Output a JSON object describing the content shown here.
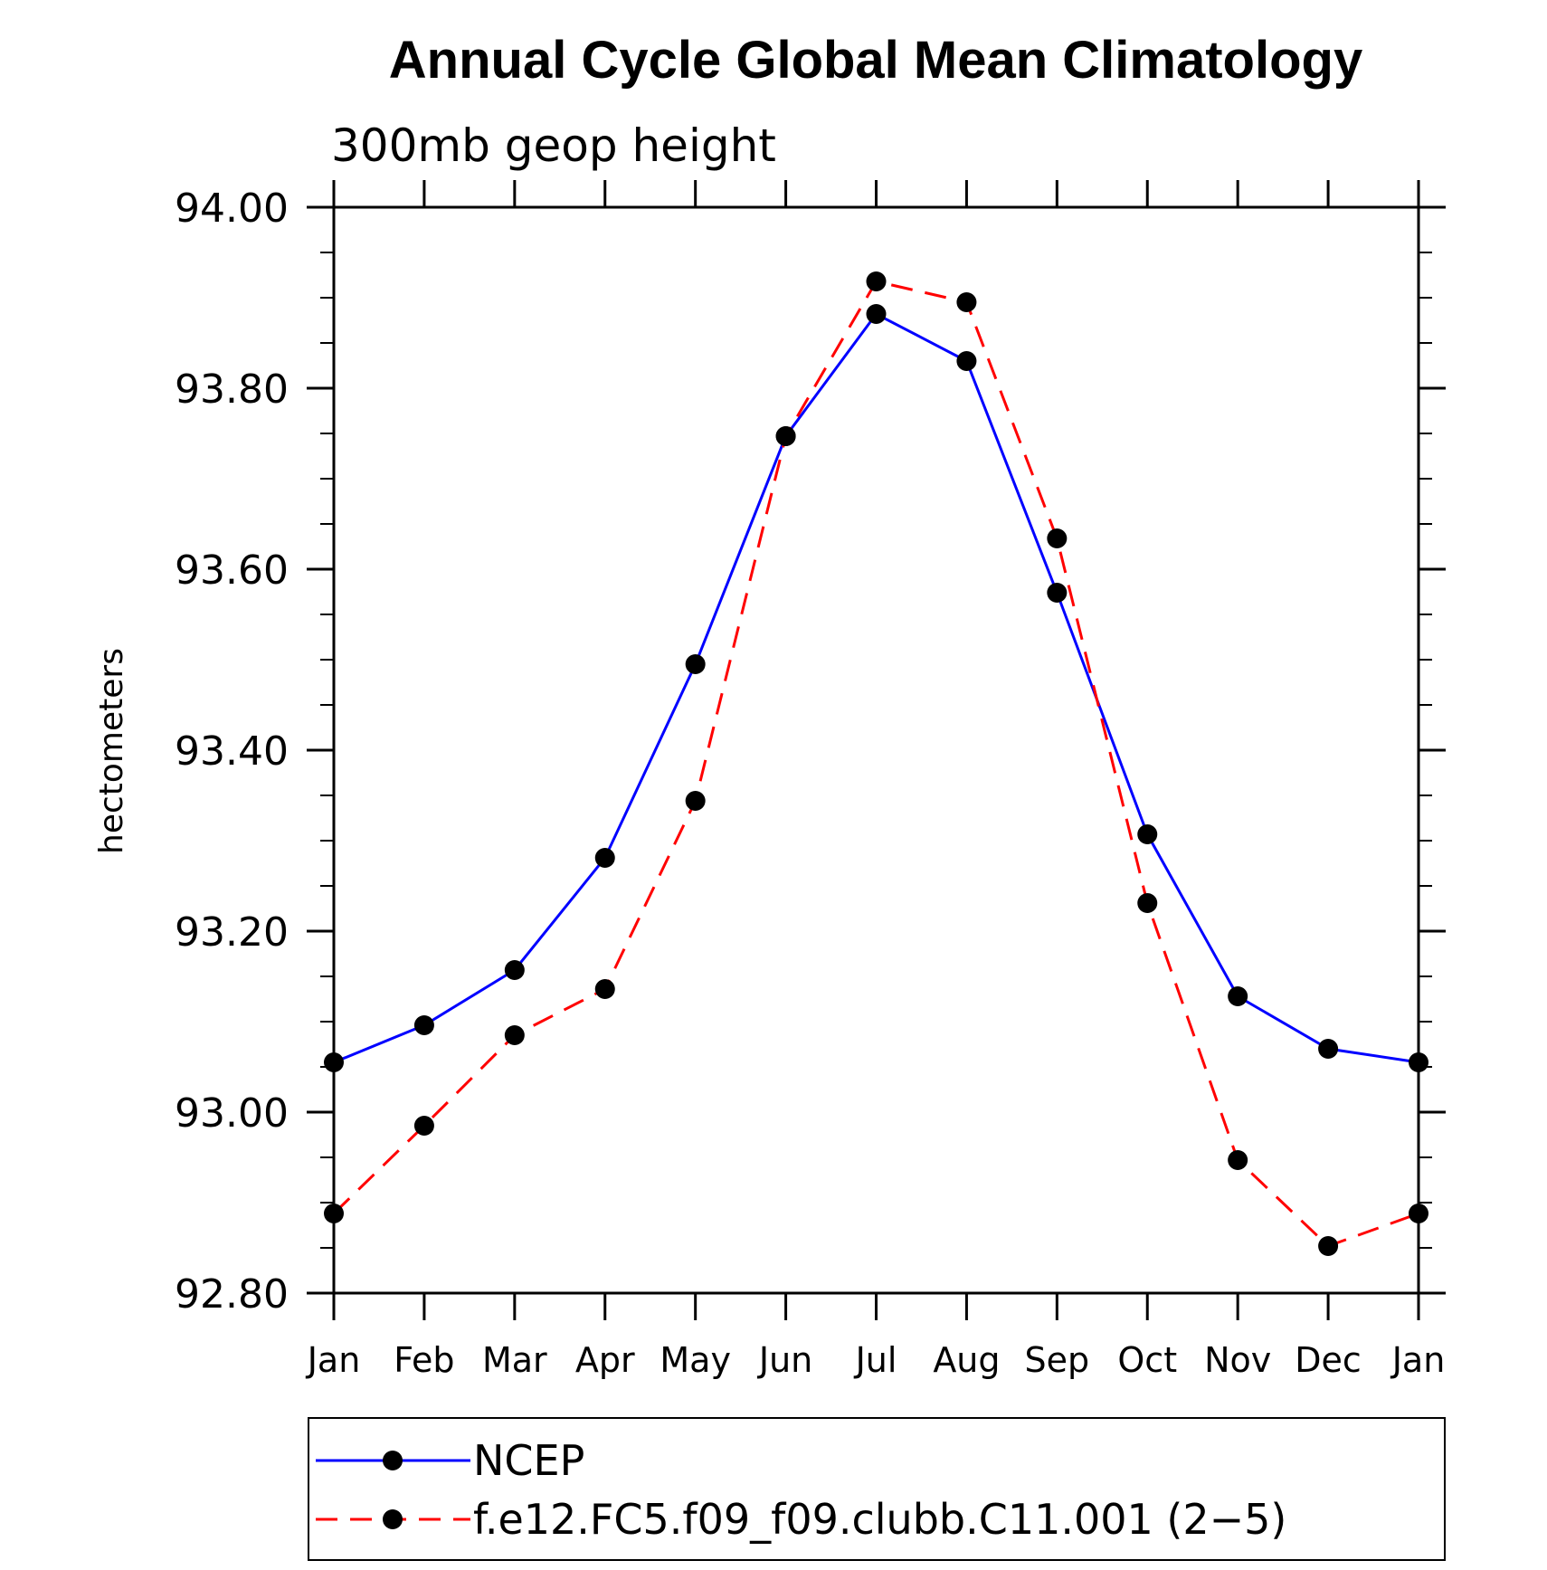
{
  "chart_data": {
    "type": "line",
    "title": "Annual Cycle Global Mean Climatology",
    "subtitle": "300mb geop height",
    "ylabel": "hectometers",
    "xlabel": "",
    "ylim": [
      92.8,
      94.0
    ],
    "yticks": [
      "92.80",
      "93.00",
      "93.20",
      "93.40",
      "93.60",
      "93.80",
      "94.00"
    ],
    "categories": [
      "Jan",
      "Feb",
      "Mar",
      "Apr",
      "May",
      "Jun",
      "Jul",
      "Aug",
      "Sep",
      "Oct",
      "Nov",
      "Dec",
      "Jan"
    ],
    "grid": false,
    "legend_position": "bottom",
    "series": [
      {
        "name": "NCEP",
        "color": "#0000ff",
        "dash": "solid",
        "marker": "filled-circle",
        "values": [
          93.055,
          93.096,
          93.157,
          93.281,
          93.495,
          93.747,
          93.882,
          93.83,
          93.574,
          93.307,
          93.128,
          93.07,
          93.055
        ]
      },
      {
        "name": "f.e12.FC5.f09_f09.clubb.C11.001 (2−5)",
        "color": "#ff0000",
        "dash": "dashed",
        "marker": "filled-circle",
        "values": [
          92.888,
          92.985,
          93.085,
          93.136,
          93.344,
          93.747,
          93.918,
          93.895,
          93.634,
          93.231,
          92.947,
          92.852,
          92.888
        ]
      }
    ]
  }
}
